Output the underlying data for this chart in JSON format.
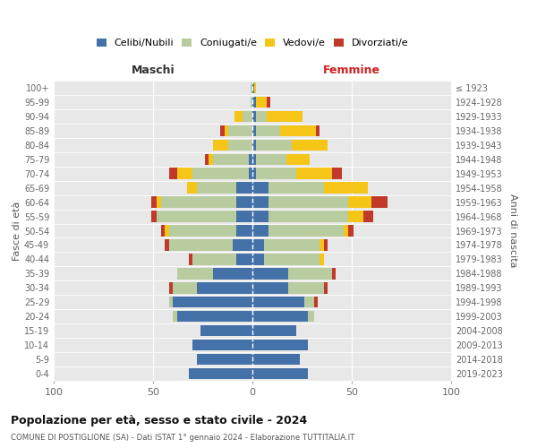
{
  "age_groups": [
    "0-4",
    "5-9",
    "10-14",
    "15-19",
    "20-24",
    "25-29",
    "30-34",
    "35-39",
    "40-44",
    "45-49",
    "50-54",
    "55-59",
    "60-64",
    "65-69",
    "70-74",
    "75-79",
    "80-84",
    "85-89",
    "90-94",
    "95-99",
    "100+"
  ],
  "birth_years": [
    "2019-2023",
    "2014-2018",
    "2009-2013",
    "2004-2008",
    "1999-2003",
    "1994-1998",
    "1989-1993",
    "1984-1988",
    "1979-1983",
    "1974-1978",
    "1969-1973",
    "1964-1968",
    "1959-1963",
    "1954-1958",
    "1949-1953",
    "1944-1948",
    "1939-1943",
    "1934-1938",
    "1929-1933",
    "1924-1928",
    "≤ 1923"
  ],
  "male": {
    "celibe": [
      32,
      28,
      30,
      26,
      38,
      40,
      28,
      20,
      8,
      10,
      8,
      8,
      8,
      8,
      2,
      2,
      0,
      0,
      0,
      0,
      0
    ],
    "coniugato": [
      0,
      0,
      0,
      0,
      2,
      2,
      12,
      18,
      22,
      32,
      34,
      40,
      38,
      20,
      28,
      18,
      12,
      12,
      5,
      1,
      1
    ],
    "vedovo": [
      0,
      0,
      0,
      0,
      0,
      0,
      0,
      0,
      0,
      0,
      2,
      0,
      2,
      5,
      8,
      2,
      8,
      2,
      4,
      0,
      0
    ],
    "divorziato": [
      0,
      0,
      0,
      0,
      0,
      0,
      2,
      0,
      2,
      2,
      2,
      3,
      3,
      0,
      4,
      2,
      0,
      2,
      0,
      0,
      0
    ]
  },
  "female": {
    "nubile": [
      28,
      24,
      28,
      22,
      28,
      26,
      18,
      18,
      6,
      6,
      8,
      8,
      8,
      8,
      2,
      2,
      2,
      2,
      2,
      2,
      1
    ],
    "coniugata": [
      0,
      0,
      0,
      0,
      3,
      5,
      18,
      22,
      28,
      28,
      38,
      40,
      40,
      28,
      20,
      15,
      18,
      12,
      5,
      0,
      0
    ],
    "vedova": [
      0,
      0,
      0,
      0,
      0,
      0,
      0,
      0,
      2,
      2,
      2,
      8,
      12,
      22,
      18,
      12,
      18,
      18,
      18,
      5,
      1
    ],
    "divorziata": [
      0,
      0,
      0,
      0,
      0,
      2,
      2,
      2,
      0,
      2,
      3,
      5,
      8,
      0,
      5,
      0,
      0,
      2,
      0,
      2,
      0
    ]
  },
  "colors": {
    "celibe": "#4472a8",
    "coniugato": "#b8cca0",
    "vedovo": "#f5c518",
    "divorziato": "#c0392b"
  },
  "title1": "Popolazione per età, sesso e stato civile - 2024",
  "title2": "COMUNE DI POSTIGLIONE (SA) - Dati ISTAT 1° gennaio 2024 - Elaborazione TUTTITALIA.IT",
  "xlabel_left": "Maschi",
  "xlabel_right": "Femmine",
  "ylabel_left": "Fasce di età",
  "ylabel_right": "Anni di nascita",
  "xlim": 100,
  "legend_labels": [
    "Celibi/Nubili",
    "Coniugati/e",
    "Vedovi/e",
    "Divorziati/e"
  ]
}
